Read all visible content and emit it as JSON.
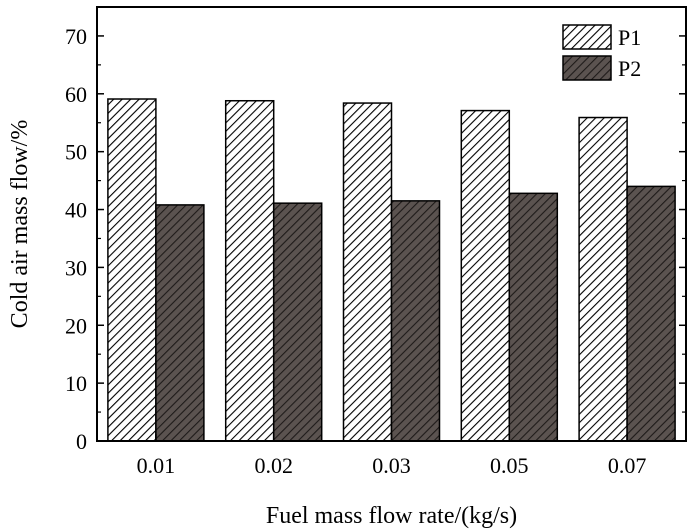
{
  "chart_data": {
    "type": "bar",
    "title": "",
    "xlabel": "Fuel mass flow rate/(kg/s)",
    "ylabel": "Cold air mass flow/%",
    "categories": [
      "0.01",
      "0.02",
      "0.03",
      "0.05",
      "0.07"
    ],
    "ylim": [
      0,
      75
    ],
    "yticks": [
      0,
      10,
      20,
      30,
      40,
      50,
      60,
      70
    ],
    "legend_position": "top-right",
    "grid": false,
    "series": [
      {
        "name": "P1",
        "values": [
          59.1,
          58.8,
          58.4,
          57.1,
          55.9
        ],
        "color": "#ffffff",
        "hatch_color": "#000000",
        "pattern": "hatch-light"
      },
      {
        "name": "P2",
        "values": [
          40.8,
          41.1,
          41.5,
          42.8,
          44.0
        ],
        "color": "#5b5350",
        "hatch_color": "#000000",
        "pattern": "hatch-dark"
      }
    ]
  }
}
